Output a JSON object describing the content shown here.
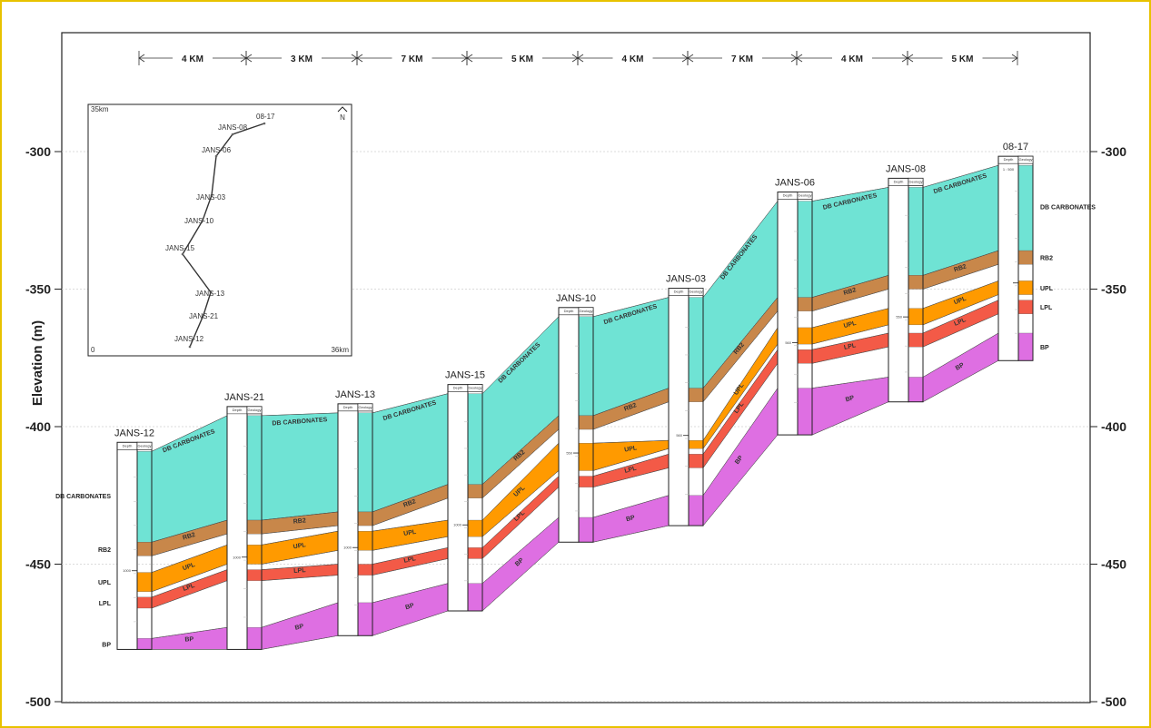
{
  "y_axis": {
    "label": "Elevation (m)",
    "ticks": [
      "-300",
      "-350",
      "-400",
      "-450",
      "-500"
    ]
  },
  "distances": [
    "4 KM",
    "3 KM",
    "7 KM",
    "5 KM",
    "4 KM",
    "7 KM",
    "4 KM",
    "5 KM"
  ],
  "well_header": {
    "depth": "Depth",
    "geology": "Geology"
  },
  "scale_label": "1 : 500",
  "depth_marks": [
    "1000",
    "1000",
    "1000",
    "1000",
    "550",
    "560",
    "560",
    "550"
  ],
  "wells": [
    {
      "name": "JANS-12",
      "top": -409,
      "boundaries": [
        -442,
        -447,
        -453,
        -460,
        -462,
        -466,
        -477,
        -481
      ],
      "side_labels": true
    },
    {
      "name": "JANS-21",
      "top": -396,
      "boundaries": [
        -434,
        -439,
        -443,
        -450,
        -452,
        -456,
        -473,
        -481
      ]
    },
    {
      "name": "JANS-13",
      "top": -395,
      "boundaries": [
        -431,
        -436,
        -438,
        -445,
        -450,
        -454,
        -464,
        -476
      ]
    },
    {
      "name": "JANS-15",
      "top": -388,
      "boundaries": [
        -421,
        -426,
        -434,
        -440,
        -444,
        -448,
        -457,
        -467
      ]
    },
    {
      "name": "JANS-10",
      "top": -360,
      "boundaries": [
        -396,
        -401,
        -406,
        -416,
        -418,
        -422,
        -433,
        -442
      ]
    },
    {
      "name": "JANS-03",
      "top": -353,
      "boundaries": [
        -386,
        -391,
        -405,
        -408,
        -410,
        -415,
        -425,
        -436
      ]
    },
    {
      "name": "JANS-06",
      "top": -318,
      "boundaries": [
        -353,
        -358,
        -364,
        -370,
        -372,
        -377,
        -386,
        -403
      ]
    },
    {
      "name": "JANS-08",
      "top": -313,
      "boundaries": [
        -345,
        -350,
        -357,
        -363,
        -366,
        -371,
        -382,
        -391
      ]
    },
    {
      "name": "08-17",
      "top": -305,
      "boundaries": [
        -336,
        -341,
        -347,
        -352,
        -354,
        -359,
        -366,
        -376
      ],
      "right_labels": true
    }
  ],
  "units": {
    "db": {
      "label": "DB CARBONATES",
      "color": "#6fe3d4"
    },
    "rb2": {
      "label": "RB2",
      "color": "#c8874a"
    },
    "upl": {
      "label": "UPL",
      "color": "#ff9a00"
    },
    "lpl": {
      "label": "LPL",
      "color": "#f35a47"
    },
    "bp": {
      "label": "BP",
      "color": "#de6fe2"
    }
  },
  "map": {
    "corner_top": "35km",
    "corner_bottom_left": "0",
    "corner_bottom_right": "36km",
    "north": "N",
    "labels": [
      "08-17",
      "JANS-08",
      "JANS-06",
      "JANS-03",
      "JANS-10",
      "JANS-15",
      "JANS-13",
      "JANS-21",
      "JANS-12"
    ]
  }
}
